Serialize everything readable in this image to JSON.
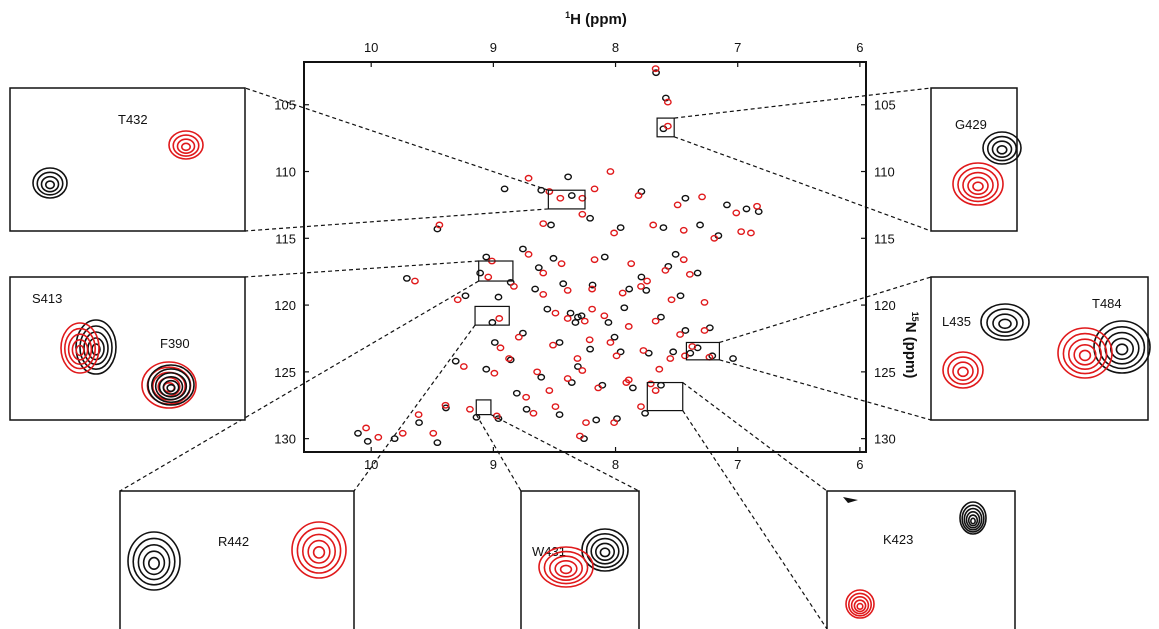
{
  "chart_data": {
    "type": "scatter",
    "title": "",
    "xlabel": {
      "sup": "1",
      "main": "H (ppm)"
    },
    "ylabel": {
      "sup": "15",
      "main": "N (ppm)"
    },
    "xlim": [
      10.55,
      5.95
    ],
    "ylim": [
      131,
      101.8
    ],
    "x_ticks": [
      10,
      9,
      8,
      7,
      6
    ],
    "y_ticks": [
      105,
      110,
      115,
      120,
      125,
      130
    ],
    "grid": false,
    "series": [
      {
        "color": "#111111",
        "points": [
          [
            7.66,
            102.6
          ],
          [
            7.58,
            104.5
          ],
          [
            7.6,
            106.8
          ],
          [
            8.38,
            110.4
          ],
          [
            8.9,
            111.3
          ],
          [
            8.6,
            111.4
          ],
          [
            8.35,
            111.8
          ],
          [
            7.78,
            111.5
          ],
          [
            7.42,
            112.0
          ],
          [
            7.08,
            112.5
          ],
          [
            6.92,
            112.8
          ],
          [
            8.52,
            114.0
          ],
          [
            8.2,
            113.5
          ],
          [
            7.95,
            114.2
          ],
          [
            7.6,
            114.2
          ],
          [
            7.3,
            114.0
          ],
          [
            7.15,
            114.8
          ],
          [
            9.45,
            114.3
          ],
          [
            8.75,
            115.8
          ],
          [
            8.08,
            116.4
          ],
          [
            7.56,
            117.1
          ],
          [
            7.32,
            117.6
          ],
          [
            9.1,
            117.6
          ],
          [
            8.85,
            118.3
          ],
          [
            8.62,
            117.2
          ],
          [
            8.42,
            118.4
          ],
          [
            8.18,
            118.5
          ],
          [
            7.88,
            118.8
          ],
          [
            7.74,
            118.9
          ],
          [
            7.46,
            119.3
          ],
          [
            9.7,
            118.0
          ],
          [
            9.22,
            119.3
          ],
          [
            8.95,
            119.4
          ],
          [
            8.55,
            120.3
          ],
          [
            8.3,
            120.9
          ],
          [
            8.05,
            121.3
          ],
          [
            7.92,
            120.2
          ],
          [
            7.62,
            120.9
          ],
          [
            7.42,
            121.9
          ],
          [
            7.22,
            121.7
          ],
          [
            8.75,
            122.1
          ],
          [
            8.45,
            122.8
          ],
          [
            8.2,
            123.3
          ],
          [
            7.95,
            123.5
          ],
          [
            7.72,
            123.6
          ],
          [
            7.52,
            123.5
          ],
          [
            7.32,
            123.2
          ],
          [
            7.2,
            123.8
          ],
          [
            9.3,
            124.2
          ],
          [
            9.05,
            124.8
          ],
          [
            8.85,
            124.1
          ],
          [
            8.6,
            125.4
          ],
          [
            8.35,
            125.8
          ],
          [
            8.1,
            126.0
          ],
          [
            7.85,
            126.2
          ],
          [
            7.62,
            126.0
          ],
          [
            9.38,
            127.7
          ],
          [
            9.13,
            128.4
          ],
          [
            8.95,
            128.5
          ],
          [
            8.72,
            127.8
          ],
          [
            8.45,
            128.2
          ],
          [
            8.15,
            128.6
          ],
          [
            7.98,
            128.5
          ],
          [
            7.75,
            128.1
          ],
          [
            8.25,
            130.0
          ],
          [
            9.45,
            130.3
          ],
          [
            9.6,
            128.8
          ],
          [
            10.02,
            130.2
          ],
          [
            9.8,
            130.0
          ],
          [
            10.1,
            129.6
          ],
          [
            8.98,
            122.8
          ],
          [
            8.8,
            126.6
          ],
          [
            8.3,
            124.6
          ],
          [
            8.0,
            122.4
          ],
          [
            7.78,
            117.9
          ],
          [
            7.5,
            116.2
          ],
          [
            8.5,
            116.5
          ],
          [
            9.05,
            116.4
          ],
          [
            9.0,
            121.3
          ],
          [
            8.65,
            118.8
          ],
          [
            8.27,
            120.8
          ],
          [
            8.32,
            121.3
          ],
          [
            8.36,
            120.6
          ],
          [
            7.38,
            123.6
          ],
          [
            7.03,
            124.0
          ],
          [
            6.82,
            113.0
          ]
        ]
      },
      {
        "color": "#e0191b",
        "points": [
          [
            7.68,
            102.3
          ],
          [
            7.58,
            104.8
          ],
          [
            7.58,
            106.6
          ],
          [
            8.28,
            112.0
          ],
          [
            8.46,
            112.0
          ],
          [
            8.72,
            110.5
          ],
          [
            8.55,
            111.5
          ],
          [
            8.18,
            111.3
          ],
          [
            8.05,
            110.0
          ],
          [
            7.82,
            111.8
          ],
          [
            7.5,
            112.5
          ],
          [
            7.3,
            111.9
          ],
          [
            7.02,
            113.1
          ],
          [
            6.85,
            112.6
          ],
          [
            8.6,
            113.9
          ],
          [
            8.28,
            113.2
          ],
          [
            8.02,
            114.6
          ],
          [
            7.7,
            114.0
          ],
          [
            7.45,
            114.4
          ],
          [
            7.2,
            115.0
          ],
          [
            6.98,
            114.5
          ],
          [
            9.45,
            114.0
          ],
          [
            8.72,
            116.2
          ],
          [
            8.18,
            116.6
          ],
          [
            7.88,
            116.9
          ],
          [
            7.6,
            117.4
          ],
          [
            7.4,
            117.7
          ],
          [
            9.05,
            117.9
          ],
          [
            8.84,
            118.6
          ],
          [
            8.6,
            117.6
          ],
          [
            8.4,
            118.9
          ],
          [
            8.2,
            118.8
          ],
          [
            7.95,
            119.1
          ],
          [
            7.8,
            118.6
          ],
          [
            7.55,
            119.6
          ],
          [
            9.65,
            118.2
          ],
          [
            9.3,
            119.6
          ],
          [
            8.5,
            120.6
          ],
          [
            8.26,
            121.2
          ],
          [
            8.1,
            120.8
          ],
          [
            7.9,
            121.6
          ],
          [
            7.68,
            121.2
          ],
          [
            7.48,
            122.2
          ],
          [
            7.28,
            121.9
          ],
          [
            8.8,
            122.4
          ],
          [
            8.52,
            123.0
          ],
          [
            8.22,
            122.6
          ],
          [
            8.0,
            123.8
          ],
          [
            7.78,
            123.4
          ],
          [
            7.56,
            124.0
          ],
          [
            7.38,
            123.1
          ],
          [
            7.24,
            123.9
          ],
          [
            9.25,
            124.6
          ],
          [
            9.0,
            125.1
          ],
          [
            8.88,
            124.0
          ],
          [
            8.65,
            125.0
          ],
          [
            8.4,
            125.5
          ],
          [
            8.15,
            126.2
          ],
          [
            7.92,
            125.8
          ],
          [
            7.68,
            126.4
          ],
          [
            7.9,
            125.6
          ],
          [
            9.4,
            127.5
          ],
          [
            9.2,
            127.8
          ],
          [
            8.98,
            128.3
          ],
          [
            8.68,
            128.1
          ],
          [
            8.5,
            127.6
          ],
          [
            8.25,
            128.8
          ],
          [
            8.02,
            128.8
          ],
          [
            7.8,
            127.6
          ],
          [
            8.3,
            129.8
          ],
          [
            9.5,
            129.6
          ],
          [
            9.62,
            128.2
          ],
          [
            9.95,
            129.9
          ],
          [
            9.75,
            129.6
          ],
          [
            10.05,
            129.2
          ],
          [
            8.95,
            123.2
          ],
          [
            8.74,
            126.9
          ],
          [
            8.28,
            124.9
          ],
          [
            8.05,
            122.8
          ],
          [
            7.75,
            118.2
          ],
          [
            7.45,
            116.6
          ],
          [
            8.45,
            116.9
          ],
          [
            9.02,
            116.7
          ],
          [
            8.96,
            121.0
          ],
          [
            8.6,
            119.2
          ],
          [
            8.2,
            120.3
          ],
          [
            8.4,
            121.0
          ],
          [
            7.65,
            124.8
          ],
          [
            7.44,
            123.8
          ],
          [
            7.28,
            119.8
          ],
          [
            6.9,
            114.6
          ],
          [
            8.55,
            126.4
          ],
          [
            8.32,
            124.0
          ],
          [
            7.72,
            125.9
          ]
        ]
      }
    ],
    "highlight_boxes": [
      {
        "label": "T432",
        "x_range": [
          8.55,
          8.25
        ],
        "y_range": [
          111.4,
          112.8
        ]
      },
      {
        "label": "G429",
        "x_range": [
          7.66,
          7.52
        ],
        "y_range": [
          106.0,
          107.4
        ]
      },
      {
        "label": "S413/F390",
        "x_range": [
          9.12,
          8.84
        ],
        "y_range": [
          116.7,
          118.2
        ]
      },
      {
        "label": "R442",
        "x_range": [
          9.15,
          8.87
        ],
        "y_range": [
          120.1,
          121.5
        ]
      },
      {
        "label": "L435/T484",
        "x_range": [
          7.42,
          7.15
        ],
        "y_range": [
          122.8,
          124.1
        ]
      },
      {
        "label": "W431",
        "x_range": [
          9.14,
          9.02
        ],
        "y_range": [
          127.1,
          128.2
        ]
      },
      {
        "label": "K423",
        "x_range": [
          7.74,
          7.45
        ],
        "y_range": [
          125.8,
          127.9
        ]
      }
    ],
    "insets": [
      {
        "label": "T432",
        "peaks": [
          {
            "color": "#111111"
          },
          {
            "color": "#e0191b"
          }
        ]
      },
      {
        "label": "G429",
        "peaks": [
          {
            "color": "#111111"
          },
          {
            "color": "#e0191b"
          }
        ]
      },
      {
        "labels": [
          "S413",
          "F390"
        ],
        "peaks": [
          {
            "color": "#e0191b"
          },
          {
            "color": "#111111"
          }
        ]
      },
      {
        "labels": [
          "L435",
          "T484"
        ],
        "peaks": [
          {
            "color": "#111111"
          },
          {
            "color": "#e0191b"
          }
        ]
      },
      {
        "label": "R442",
        "peaks": [
          {
            "color": "#111111"
          },
          {
            "color": "#e0191b"
          }
        ]
      },
      {
        "label": "W431",
        "peaks": [
          {
            "color": "#e0191b"
          },
          {
            "color": "#111111"
          }
        ]
      },
      {
        "label": "K423",
        "peaks": [
          {
            "color": "#111111"
          },
          {
            "color": "#e0191b"
          }
        ]
      }
    ]
  }
}
